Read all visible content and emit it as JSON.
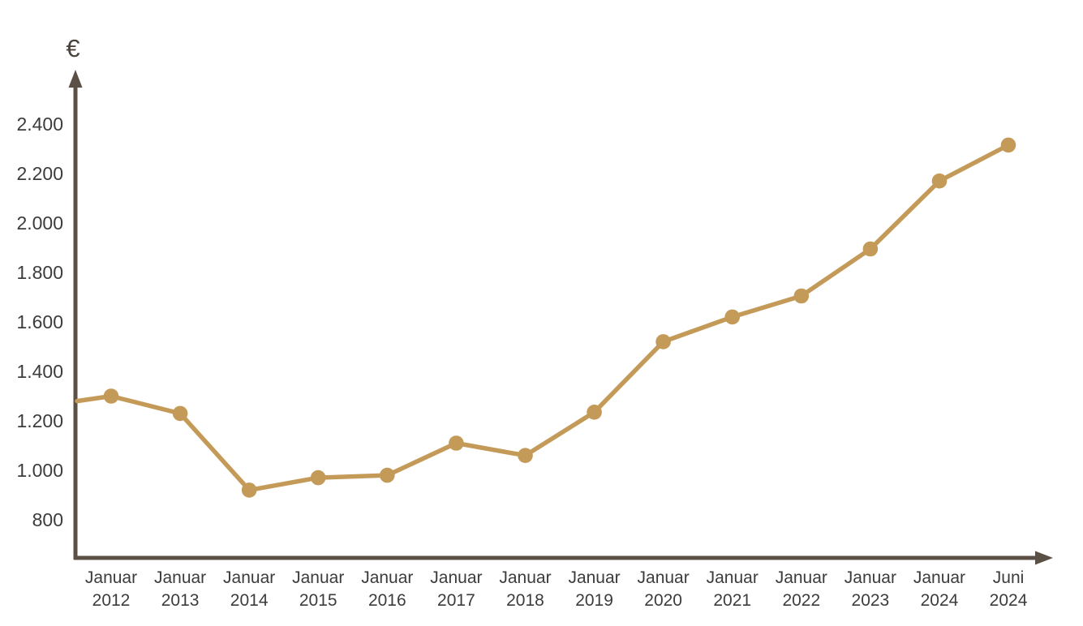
{
  "chart_data": {
    "type": "line",
    "title": "",
    "xlabel": "",
    "ylabel": "€",
    "categories": [
      {
        "month": "Januar",
        "year": "2012"
      },
      {
        "month": "Januar",
        "year": "2013"
      },
      {
        "month": "Januar",
        "year": "2014"
      },
      {
        "month": "Januar",
        "year": "2015"
      },
      {
        "month": "Januar",
        "year": "2016"
      },
      {
        "month": "Januar",
        "year": "2017"
      },
      {
        "month": "Januar",
        "year": "2018"
      },
      {
        "month": "Januar",
        "year": "2019"
      },
      {
        "month": "Januar",
        "year": "2020"
      },
      {
        "month": "Januar",
        "year": "2021"
      },
      {
        "month": "Januar",
        "year": "2022"
      },
      {
        "month": "Januar",
        "year": "2023"
      },
      {
        "month": "Januar",
        "year": "2024"
      },
      {
        "month": "Juni",
        "year": "2024"
      }
    ],
    "values": [
      1300,
      1230,
      920,
      970,
      980,
      1110,
      1060,
      1235,
      1520,
      1620,
      1705,
      1895,
      2170,
      2315
    ],
    "axis_intercept_value": 1280,
    "y_ticks": [
      {
        "value": 800,
        "label": "800"
      },
      {
        "value": 1000,
        "label": "1.000"
      },
      {
        "value": 1200,
        "label": "1.200"
      },
      {
        "value": 1400,
        "label": "1.400"
      },
      {
        "value": 1600,
        "label": "1.600"
      },
      {
        "value": 1800,
        "label": "1.800"
      },
      {
        "value": 2000,
        "label": "2.000"
      },
      {
        "value": 2200,
        "label": "2.200"
      },
      {
        "value": 2400,
        "label": "2.400"
      }
    ],
    "ylim": [
      650,
      2600
    ],
    "grid": false,
    "legend": false,
    "line_color": "#C49A58",
    "marker_color": "#C49A58",
    "axis_color": "#5B5046",
    "text_color": "#3C3C3C"
  }
}
